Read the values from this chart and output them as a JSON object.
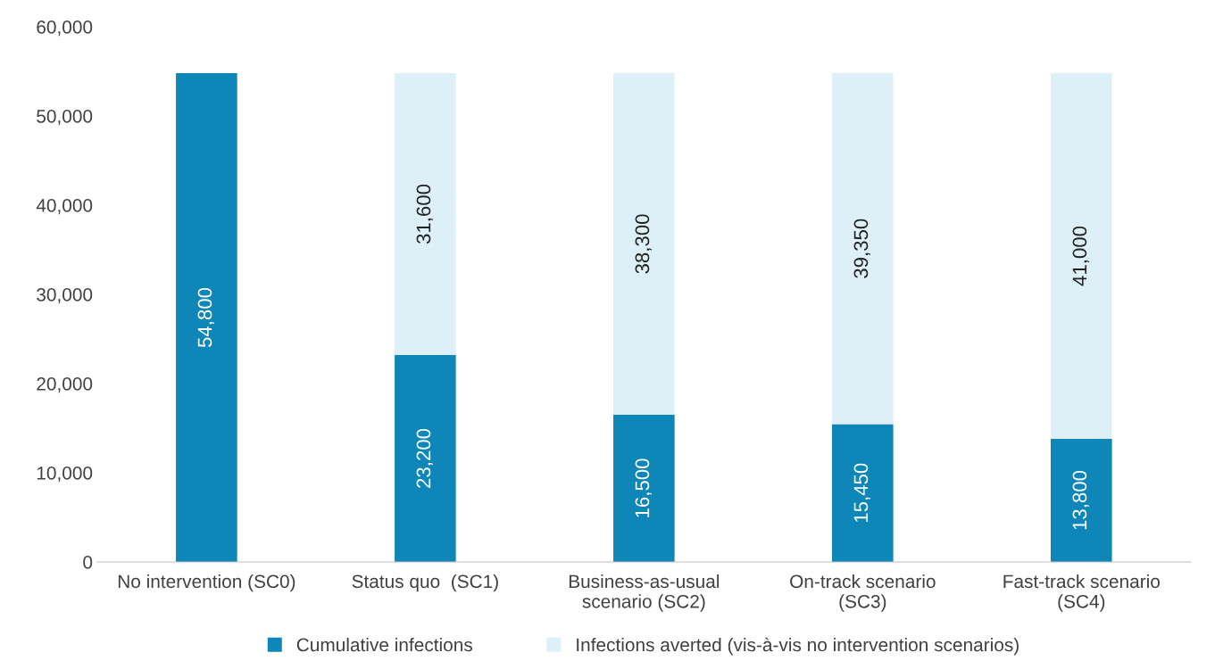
{
  "chart_data": {
    "type": "bar",
    "stacked": true,
    "categories": [
      "No intervention (SC0)",
      "Status quo  (SC1)",
      "Business-as-usual\nscenario (SC2)",
      "On-track scenario\n(SC3)",
      "Fast-track scenario\n(SC4)"
    ],
    "series": [
      {
        "name": "Cumulative infections",
        "color": "#0e86b8",
        "values": [
          54800,
          23200,
          16500,
          15450,
          13800
        ],
        "value_labels": [
          "54,800",
          "23,200",
          "16,500",
          "15,450",
          "13,800"
        ]
      },
      {
        "name": "Infections averted (vis-à-vis no intervention scenarios)",
        "color": "#ddf0f8",
        "values": [
          null,
          31600,
          38300,
          39350,
          41000
        ],
        "value_labels": [
          null,
          "31,600",
          "38,300",
          "39,350",
          "41,000"
        ]
      }
    ],
    "ylim": [
      0,
      60000
    ],
    "yticks": [
      {
        "value": 0,
        "label": "0"
      },
      {
        "value": 10000,
        "label": "10,000"
      },
      {
        "value": 20000,
        "label": "20,000"
      },
      {
        "value": 30000,
        "label": "30,000"
      },
      {
        "value": 40000,
        "label": "40,000"
      },
      {
        "value": 50000,
        "label": "50,000"
      },
      {
        "value": 60000,
        "label": "60,000"
      }
    ],
    "grid": false,
    "legend": "bottom"
  }
}
